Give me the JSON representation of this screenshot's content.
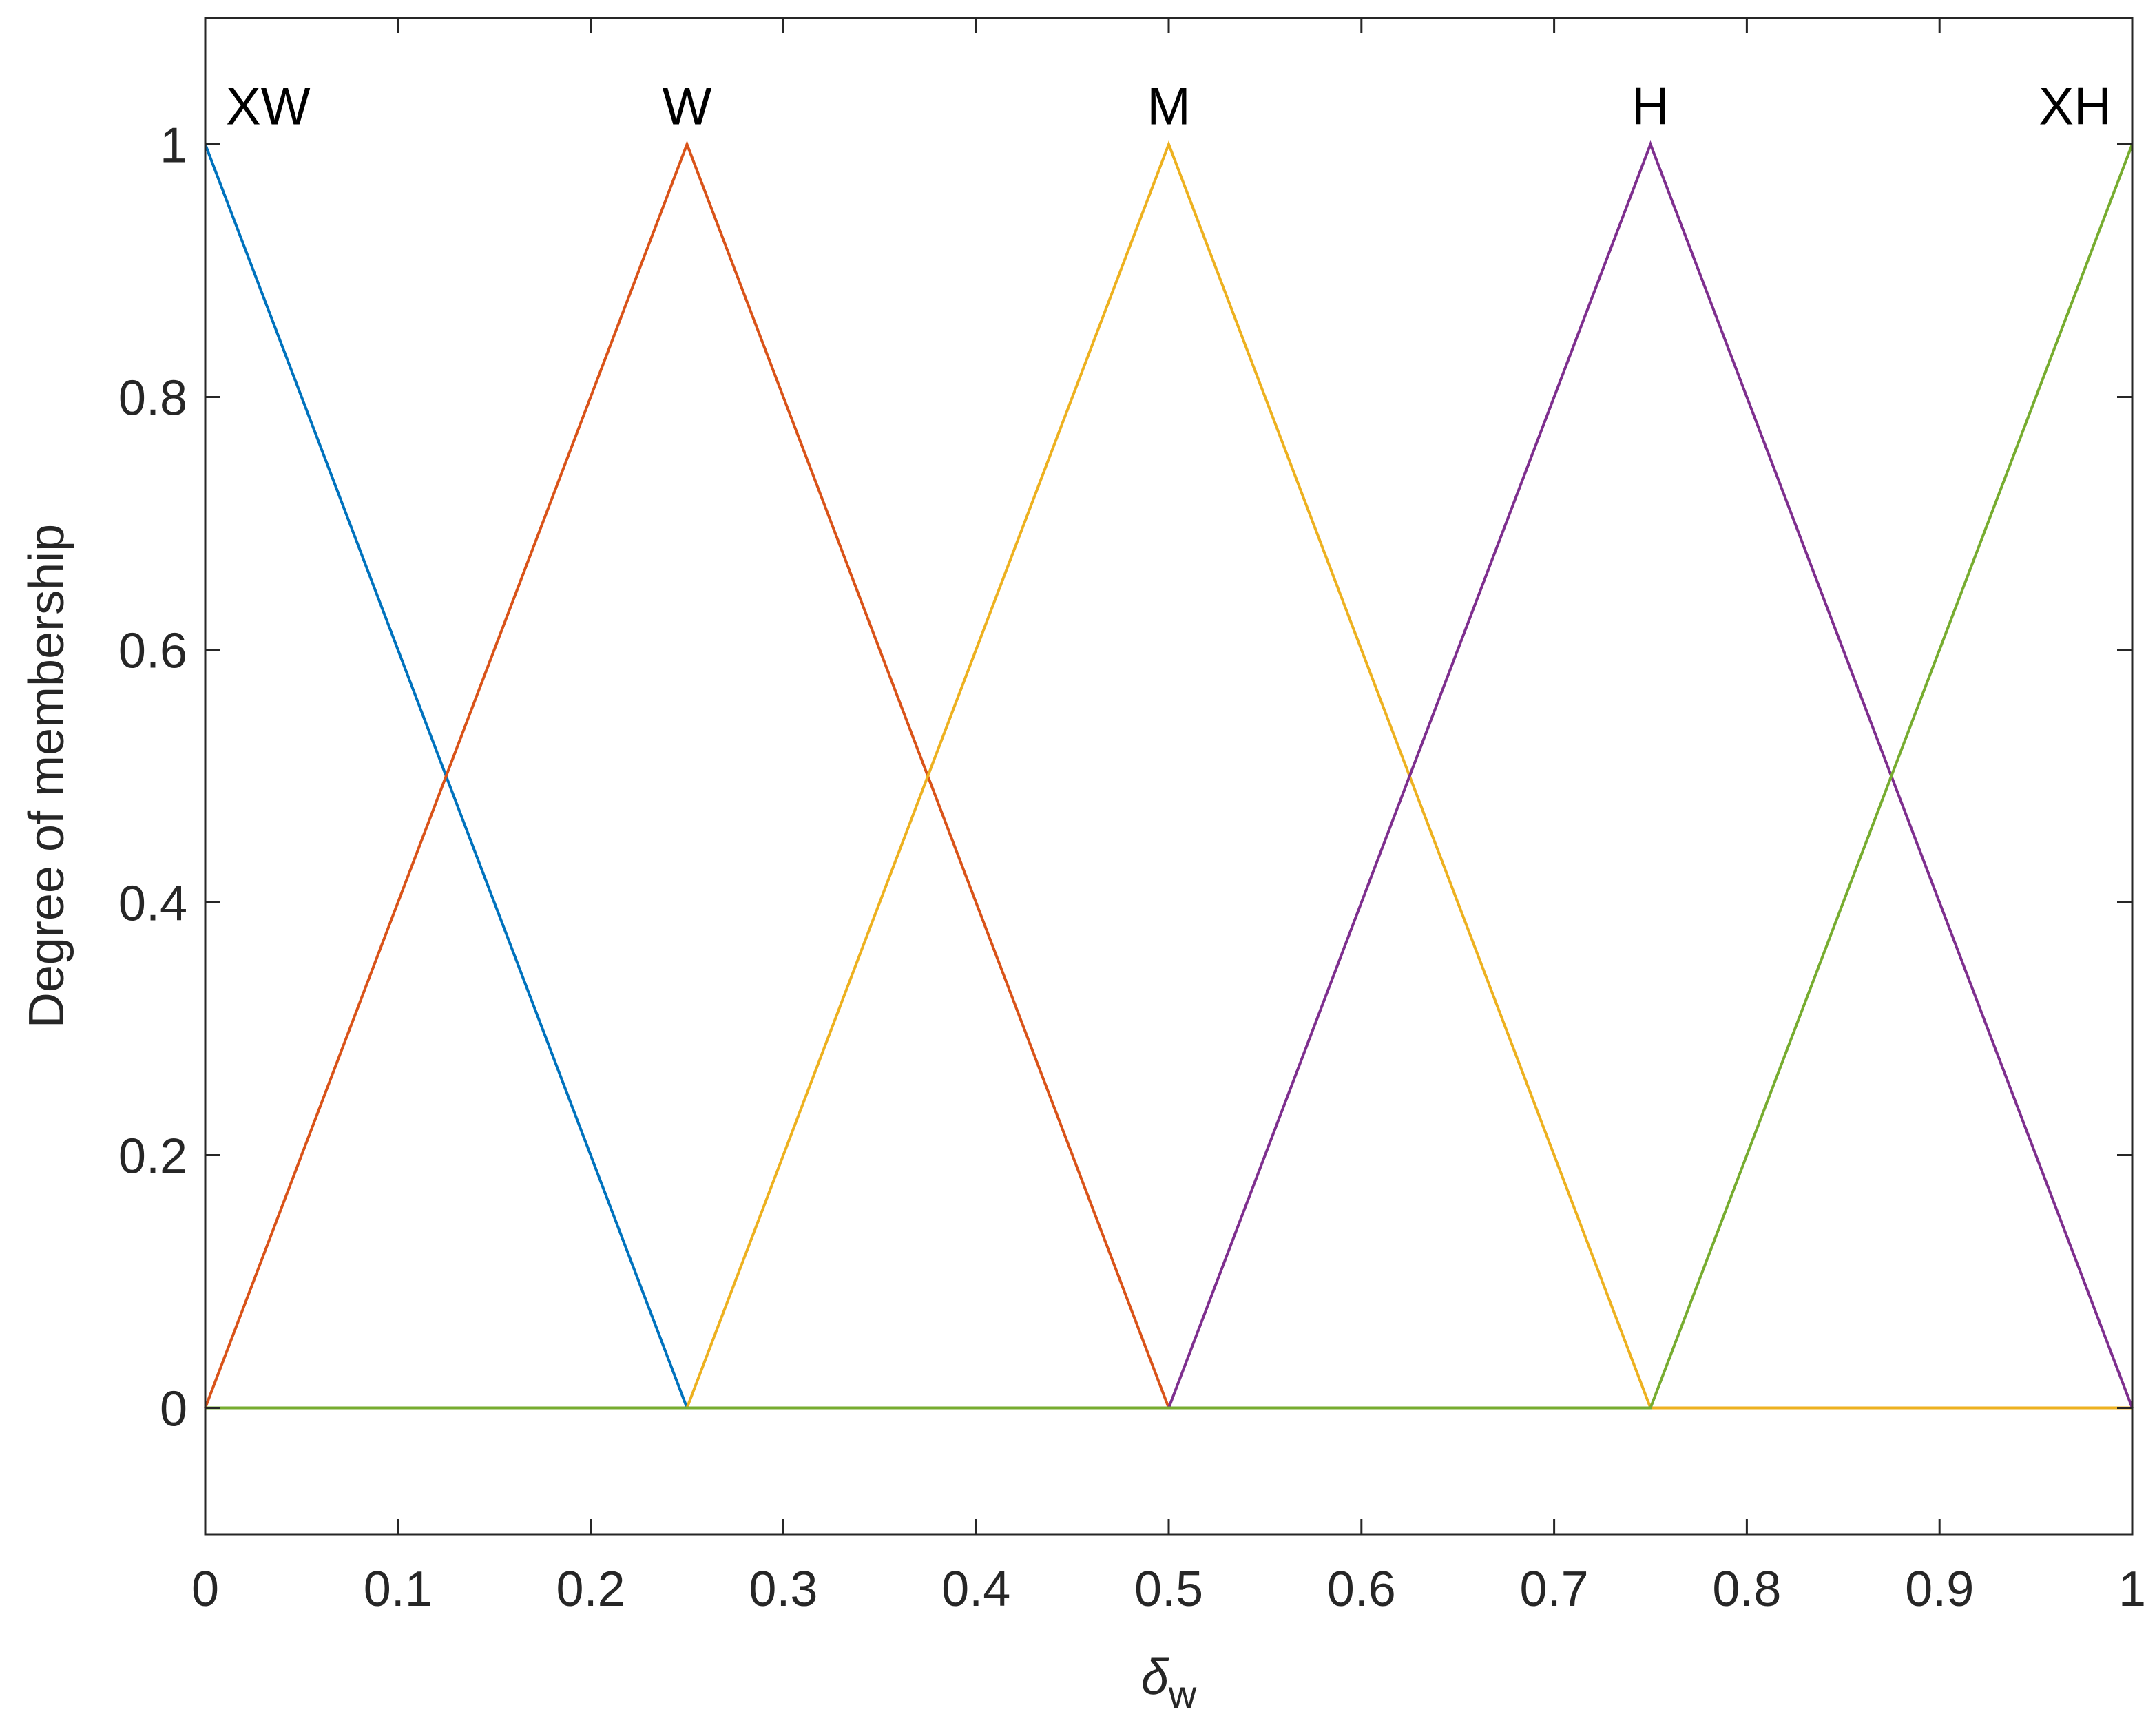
{
  "chart_data": {
    "type": "line",
    "xlabel": "δ",
    "xlabel_subscript": "w",
    "ylabel": "Degree of membership",
    "xlim": [
      0,
      1
    ],
    "ylim": [
      -0.1,
      1.1
    ],
    "grid": false,
    "legend": "none",
    "x_ticks": [
      0,
      0.1,
      0.2,
      0.3,
      0.4,
      0.5,
      0.6,
      0.7,
      0.8,
      0.9,
      1
    ],
    "x_tick_labels": [
      "0",
      "0.1",
      "0.2",
      "0.3",
      "0.4",
      "0.5",
      "0.6",
      "0.7",
      "0.8",
      "0.9",
      "1"
    ],
    "y_ticks": [
      0,
      0.2,
      0.4,
      0.6,
      0.8,
      1
    ],
    "y_tick_labels": [
      "0",
      "0.2",
      "0.4",
      "0.6",
      "0.8",
      "1"
    ],
    "series": [
      {
        "name": "XW",
        "color": "#0072BD",
        "x": [
          0,
          0.25,
          1
        ],
        "y": [
          1,
          0,
          0
        ]
      },
      {
        "name": "W",
        "color": "#D95319",
        "x": [
          0,
          0.25,
          0.5,
          1
        ],
        "y": [
          0,
          1,
          0,
          0
        ]
      },
      {
        "name": "M",
        "color": "#EDB120",
        "x": [
          0,
          0.25,
          0.5,
          0.75,
          1
        ],
        "y": [
          0,
          0,
          1,
          0,
          0
        ]
      },
      {
        "name": "H",
        "color": "#7E2F8E",
        "x": [
          0,
          0.5,
          0.75,
          1
        ],
        "y": [
          0,
          0,
          1,
          0
        ]
      },
      {
        "name": "XH",
        "color": "#77AC30",
        "x": [
          0,
          0.75,
          1
        ],
        "y": [
          0,
          0,
          1
        ]
      }
    ],
    "annotations": [
      {
        "text": "XW",
        "x": 0.0,
        "y": 1.03,
        "anchor": "start"
      },
      {
        "text": "W",
        "x": 0.25,
        "y": 1.03,
        "anchor": "middle"
      },
      {
        "text": "M",
        "x": 0.5,
        "y": 1.03,
        "anchor": "middle"
      },
      {
        "text": "H",
        "x": 0.75,
        "y": 1.03,
        "anchor": "middle"
      },
      {
        "text": "XH",
        "x": 1.0,
        "y": 1.03,
        "anchor": "end"
      }
    ]
  }
}
